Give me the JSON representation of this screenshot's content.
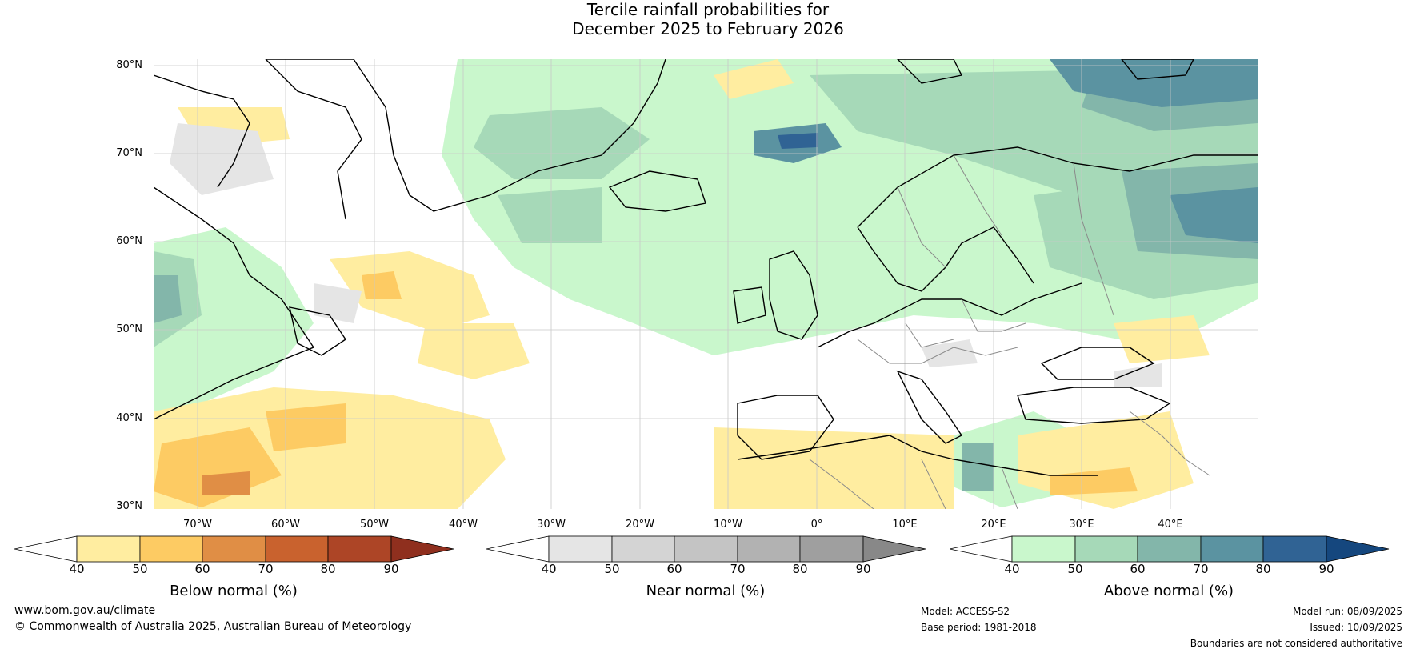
{
  "title": {
    "line1": "Tercile rainfall probabilities for",
    "line2": "December 2025 to February 2026"
  },
  "axes": {
    "lat_labels": [
      "80°N",
      "70°N",
      "60°N",
      "50°N",
      "40°N",
      "30°N"
    ],
    "lon_labels": [
      "70°W",
      "60°W",
      "50°W",
      "40°W",
      "30°W",
      "20°W",
      "10°W",
      "0°",
      "10°E",
      "20°E",
      "30°E",
      "40°E"
    ]
  },
  "legend": {
    "below": {
      "label": "Below normal (%)",
      "ticks": [
        "40",
        "50",
        "60",
        "70",
        "80",
        "90"
      ],
      "colors": [
        "#ffffff",
        "#ffeda0",
        "#fdcb63",
        "#e08e45",
        "#c9622e",
        "#ad4526",
        "#8f2f1e"
      ]
    },
    "near": {
      "label": "Near normal (%)",
      "ticks": [
        "40",
        "50",
        "60",
        "70",
        "80",
        "90"
      ],
      "colors": [
        "#ffffff",
        "#e5e5e5",
        "#d4d4d4",
        "#c4c4c4",
        "#b2b2b2",
        "#9f9f9f",
        "#888888"
      ]
    },
    "above": {
      "label": "Above normal (%)",
      "ticks": [
        "40",
        "50",
        "60",
        "70",
        "80",
        "90"
      ],
      "colors": [
        "#ffffff",
        "#c9f7cc",
        "#a6d9b8",
        "#83b6aa",
        "#5b93a1",
        "#306394",
        "#15477e"
      ]
    }
  },
  "footer": {
    "url": "www.bom.gov.au/climate",
    "copyright": "© Commonwealth of Australia 2025, Australian Bureau of Meteorology",
    "model": "Model: ACCESS-S2",
    "base_period": "Base period: 1981-2018",
    "model_run": "Model run: 08/09/2025",
    "issued": "Issued: 10/09/2025",
    "disclaimer": "Boundaries are not considered authoritative"
  },
  "map_colors": {
    "above_40": "#c9f7cc",
    "above_50": "#a6d9b8",
    "above_60": "#83b6aa",
    "above_70": "#5b93a1",
    "above_80": "#306394",
    "below_40": "#ffeda0",
    "below_50": "#fdcb63",
    "below_60": "#e08e45",
    "near_40": "#e5e5e5",
    "coast": "#000000",
    "border": "#8a8a8a",
    "grid": "#c8c8c8"
  }
}
